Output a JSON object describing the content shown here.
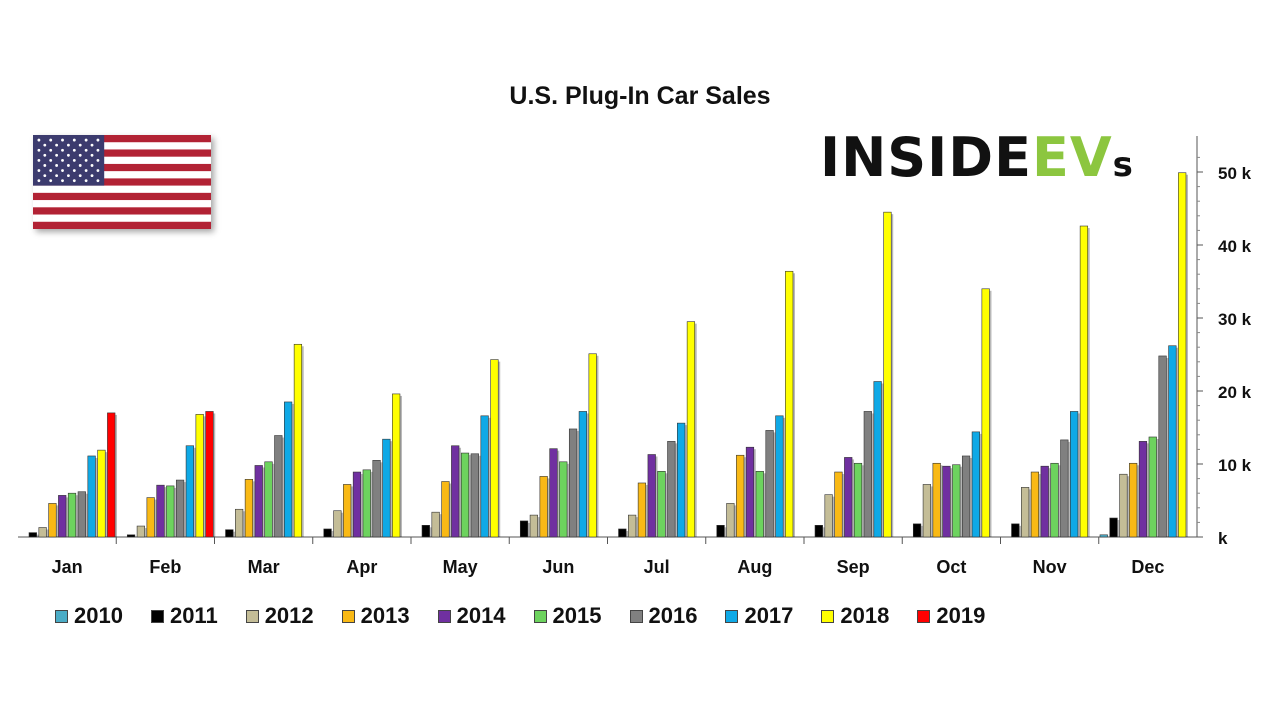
{
  "chart_data": {
    "type": "bar",
    "title": "U.S. Plug-In Car Sales",
    "categories": [
      "Jan",
      "Feb",
      "Mar",
      "Apr",
      "May",
      "Jun",
      "Jul",
      "Aug",
      "Sep",
      "Oct",
      "Nov",
      "Dec"
    ],
    "y_axis": {
      "position": "right",
      "ylim": [
        0,
        53000
      ],
      "ticks": [
        0,
        10000,
        20000,
        30000,
        40000,
        50000
      ],
      "tick_labels": [
        "k",
        "10 k",
        "20 k",
        "30 k",
        "40 k",
        "50 k"
      ]
    },
    "grid": false,
    "legend_position": "bottom",
    "series": [
      {
        "name": "2010",
        "color": "#4bacc6",
        "values": [
          null,
          null,
          null,
          null,
          null,
          null,
          null,
          null,
          null,
          null,
          null,
          300
        ]
      },
      {
        "name": "2011",
        "color": "#000000",
        "values": [
          600,
          300,
          1000,
          1100,
          1600,
          2200,
          1100,
          1600,
          1600,
          1800,
          1800,
          2600
        ]
      },
      {
        "name": "2012",
        "color": "#c4bd97",
        "values": [
          1300,
          1500,
          3800,
          3600,
          3400,
          3000,
          3000,
          4600,
          5800,
          7200,
          6800,
          8600
        ]
      },
      {
        "name": "2013",
        "color": "#f9b915",
        "values": [
          4600,
          5400,
          7900,
          7200,
          7600,
          8300,
          7400,
          11200,
          8900,
          10100,
          8900,
          10100
        ]
      },
      {
        "name": "2014",
        "color": "#7030a0",
        "values": [
          5700,
          7100,
          9800,
          8900,
          12500,
          12100,
          11300,
          12300,
          10900,
          9700,
          9700,
          13100
        ]
      },
      {
        "name": "2015",
        "color": "#6dd35e",
        "values": [
          6000,
          7000,
          10300,
          9200,
          11500,
          10300,
          9000,
          9000,
          10100,
          9900,
          10100,
          13700
        ]
      },
      {
        "name": "2016",
        "color": "#808080",
        "values": [
          6200,
          7800,
          13900,
          10500,
          11400,
          14800,
          13100,
          14600,
          17200,
          11100,
          13300,
          24800
        ]
      },
      {
        "name": "2017",
        "color": "#0fa9e6",
        "values": [
          11100,
          12500,
          18500,
          13400,
          16600,
          17200,
          15600,
          16600,
          21300,
          14400,
          17200,
          26200
        ]
      },
      {
        "name": "2018",
        "color": "#ffff00",
        "values": [
          11900,
          16800,
          26400,
          19600,
          24300,
          25100,
          29500,
          36400,
          44500,
          34000,
          42600,
          49900
        ]
      },
      {
        "name": "2019",
        "color": "#ff0000",
        "values": [
          17000,
          17200,
          null,
          null,
          null,
          null,
          null,
          null,
          null,
          null,
          null,
          null
        ]
      }
    ]
  },
  "branding": {
    "brand_main": "INSIDE",
    "brand_ev": "EV",
    "brand_s": "s",
    "brand_color_ev": "#8cc63f"
  },
  "flag": {
    "icon": "us-flag-icon",
    "stripe_red": "#b22234",
    "canton_blue": "#3c3b6e"
  }
}
